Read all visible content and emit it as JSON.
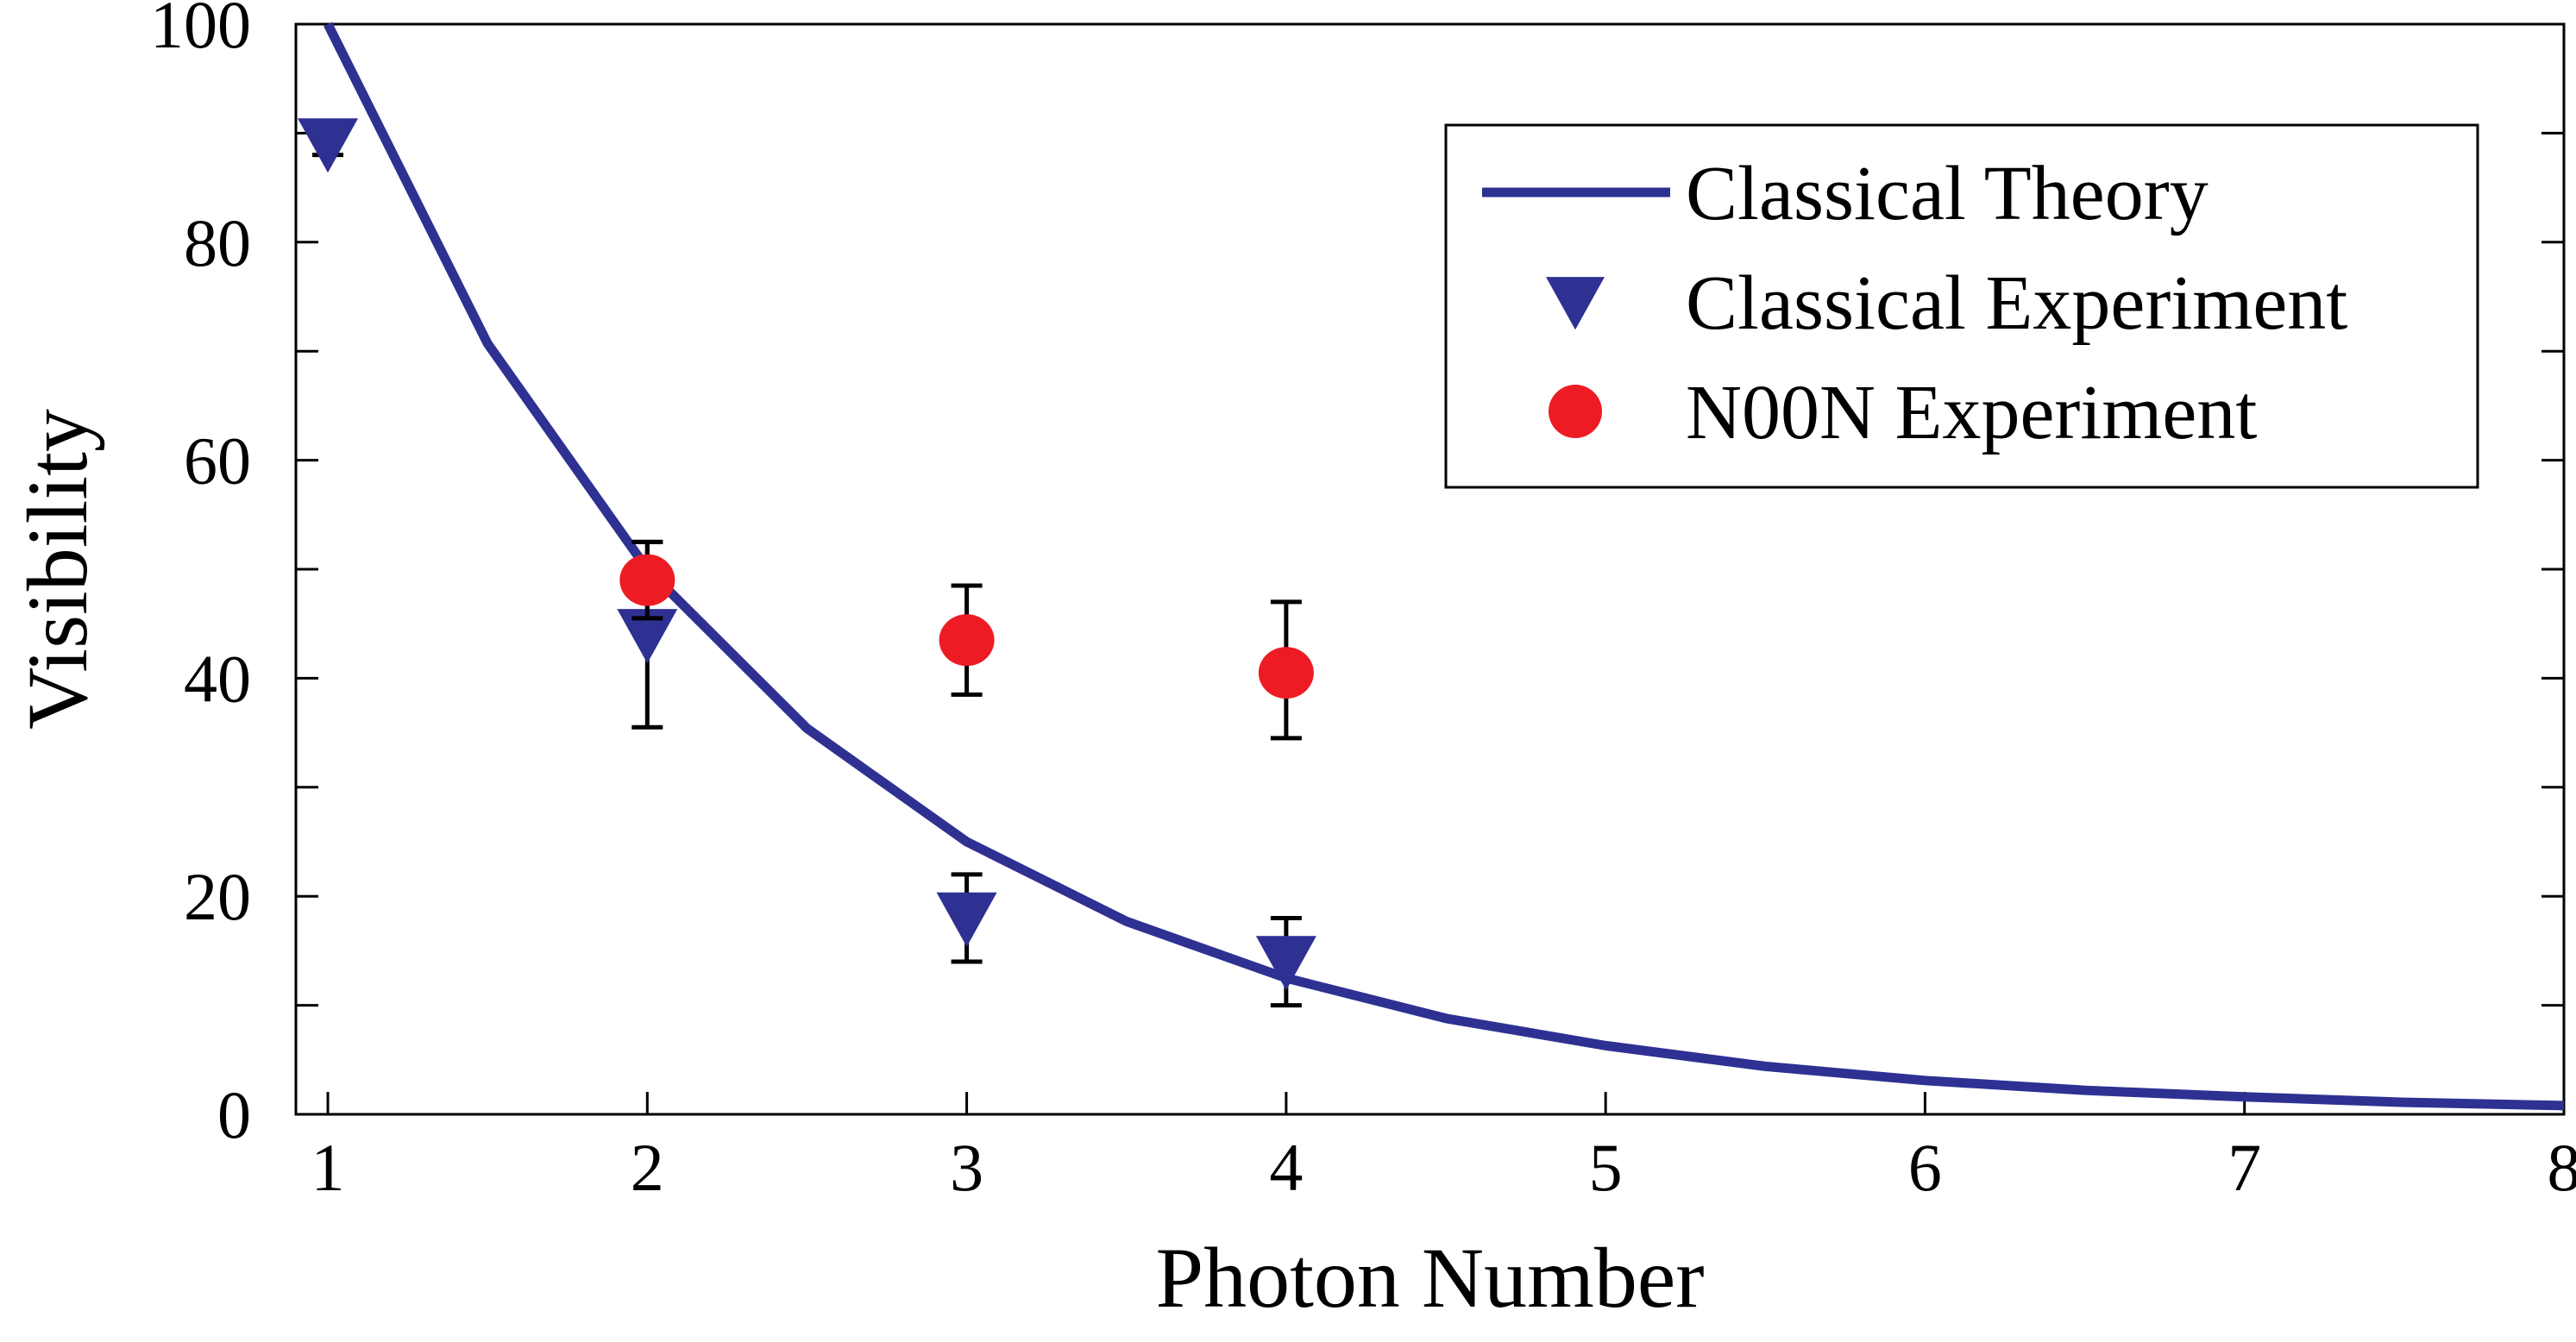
{
  "chart_data": {
    "type": "line",
    "title": "",
    "xlabel": "Photon Number",
    "ylabel": "Visibility",
    "xlim": [
      0.9,
      8
    ],
    "ylim": [
      0,
      100
    ],
    "xticks": [
      1,
      2,
      3,
      4,
      5,
      6,
      7,
      8
    ],
    "yticks": [
      0,
      20,
      40,
      60,
      80,
      100
    ],
    "grid": false,
    "legend_position": "top-right",
    "series": [
      {
        "name": "Classical Theory",
        "kind": "line",
        "color": "#2e3192",
        "x": [
          1,
          1.5,
          2,
          2.5,
          3,
          3.5,
          4,
          4.5,
          5,
          5.5,
          6,
          6.5,
          7,
          7.5,
          8
        ],
        "y": [
          100,
          70.7,
          50,
          35.4,
          25,
          17.7,
          12.5,
          8.8,
          6.3,
          4.4,
          3.1,
          2.2,
          1.6,
          1.1,
          0.8
        ]
      },
      {
        "name": "Classical Experiment",
        "kind": "triangle-down",
        "color": "#2e3192",
        "x": [
          1,
          2,
          3,
          4
        ],
        "y": [
          89,
          44,
          18,
          14
        ],
        "err_low": [
          88,
          35.5,
          14,
          10
        ],
        "err_high": [
          89.5,
          52.5,
          22,
          18
        ]
      },
      {
        "name": "N00N Experiment",
        "kind": "circle",
        "color": "#ed1c24",
        "x": [
          2,
          3,
          4
        ],
        "y": [
          49,
          43.5,
          40.5
        ],
        "err_low": [
          45.5,
          38.5,
          34.5
        ],
        "err_high": [
          52.5,
          48.5,
          47
        ]
      }
    ]
  }
}
